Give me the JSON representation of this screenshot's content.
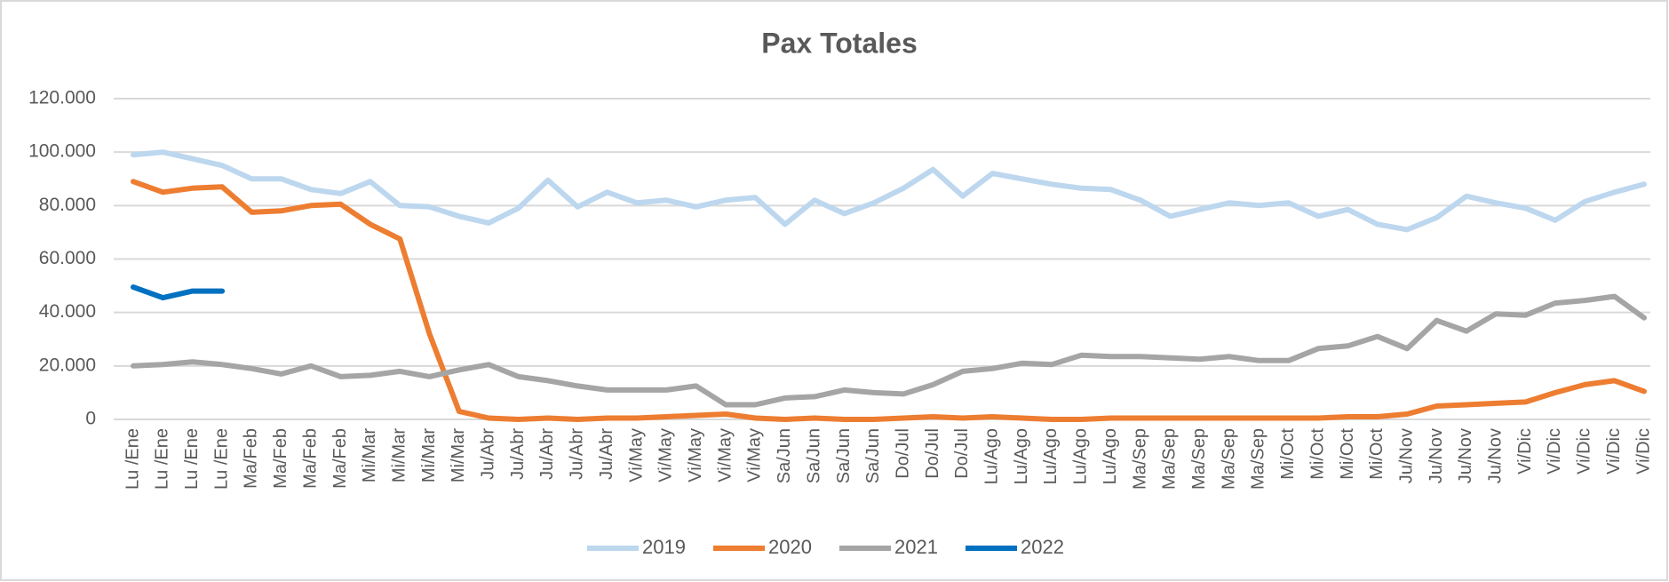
{
  "chart_data": {
    "type": "line",
    "title": "Pax Totales",
    "categories": [
      "Lu /Ene",
      "Lu /Ene",
      "Lu /Ene",
      "Lu /Ene",
      "Ma/Feb",
      "Ma/Feb",
      "Ma/Feb",
      "Ma/Feb",
      "Mi/Mar",
      "Mi/Mar",
      "Mi/Mar",
      "Mi/Mar",
      "Ju/Abr",
      "Ju/Abr",
      "Ju/Abr",
      "Ju/Abr",
      "Ju/Abr",
      "Vi/May",
      "Vi/May",
      "Vi/May",
      "Vi/May",
      "Vi/May",
      "Sa/Jun",
      "Sa/Jun",
      "Sa/Jun",
      "Sa/Jun",
      "Do/Jul",
      "Do/Jul",
      "Do/Jul",
      "Lu/Ago",
      "Lu/Ago",
      "Lu/Ago",
      "Lu/Ago",
      "Lu/Ago",
      "Ma/Sep",
      "Ma/Sep",
      "Ma/Sep",
      "Ma/Sep",
      "Ma/Sep",
      "Mi/Oct",
      "Mi/Oct",
      "Mi/Oct",
      "Mi/Oct",
      "Ju/Nov",
      "Ju/Nov",
      "Ju/Nov",
      "Ju/Nov",
      "Vi/Dic",
      "Vi/Dic",
      "Vi/Dic",
      "Vi/Dic",
      "Vi/Dic"
    ],
    "series": [
      {
        "name": "2019",
        "color": "#bdd7ee",
        "values": [
          99000,
          100000,
          97500,
          95000,
          90000,
          90000,
          86000,
          84500,
          89000,
          80000,
          79500,
          76000,
          73500,
          79000,
          89500,
          79500,
          85000,
          81000,
          82000,
          79500,
          82000,
          83000,
          73000,
          82000,
          77000,
          81000,
          86500,
          93500,
          83500,
          92000,
          90000,
          88000,
          86500,
          86000,
          82000,
          76000,
          78500,
          81000,
          80000,
          81000,
          76000,
          78500,
          73000,
          71000,
          75500,
          83500,
          81000,
          79000,
          74500,
          81500,
          85000,
          88000
        ]
      },
      {
        "name": "2020",
        "color": "#ed7d31",
        "values": [
          89000,
          85000,
          86500,
          87000,
          77500,
          78000,
          80000,
          80500,
          73000,
          67500,
          32000,
          3000,
          500,
          0,
          500,
          0,
          500,
          500,
          1000,
          1500,
          2000,
          500,
          0,
          500,
          0,
          0,
          500,
          1000,
          500,
          1000,
          500,
          0,
          0,
          500,
          500,
          500,
          500,
          500,
          500,
          500,
          500,
          1000,
          1000,
          2000,
          5000,
          5500,
          6000,
          6500,
          10000,
          13000,
          14500,
          10500
        ]
      },
      {
        "name": "2021",
        "color": "#a5a5a5",
        "values": [
          20000,
          20500,
          21500,
          20500,
          19000,
          17000,
          20000,
          16000,
          16500,
          18000,
          16000,
          18500,
          20500,
          16000,
          14500,
          12500,
          11000,
          11000,
          11000,
          12500,
          5500,
          5500,
          8000,
          8500,
          11000,
          10000,
          9500,
          13000,
          18000,
          19000,
          21000,
          20500,
          24000,
          23500,
          23500,
          23000,
          22500,
          23500,
          22000,
          22000,
          26500,
          27500,
          31000,
          26500,
          37000,
          33000,
          39500,
          39000,
          43500,
          44500,
          46000,
          38000
        ]
      },
      {
        "name": "2022",
        "color": "#0070c0",
        "values": [
          49500,
          45500,
          48000,
          48000,
          null,
          null,
          null,
          null,
          null,
          null,
          null,
          null,
          null,
          null,
          null,
          null,
          null,
          null,
          null,
          null,
          null,
          null,
          null,
          null,
          null,
          null,
          null,
          null,
          null,
          null,
          null,
          null,
          null,
          null,
          null,
          null,
          null,
          null,
          null,
          null,
          null,
          null,
          null,
          null,
          null,
          null,
          null,
          null,
          null,
          null,
          null,
          null
        ]
      }
    ],
    "ylim": [
      0,
      120000
    ],
    "yticks": [
      0,
      {
        "value": 20000,
        "label": "20.000"
      },
      {
        "value": 40000,
        "label": "40.000"
      },
      {
        "value": 60000,
        "label": "60.000"
      },
      {
        "value": 80000,
        "label": "80.000"
      },
      {
        "value": 100000,
        "label": "100.000"
      },
      {
        "value": 120000,
        "label": "120.000"
      }
    ],
    "grid": true,
    "legend": "bottom"
  }
}
